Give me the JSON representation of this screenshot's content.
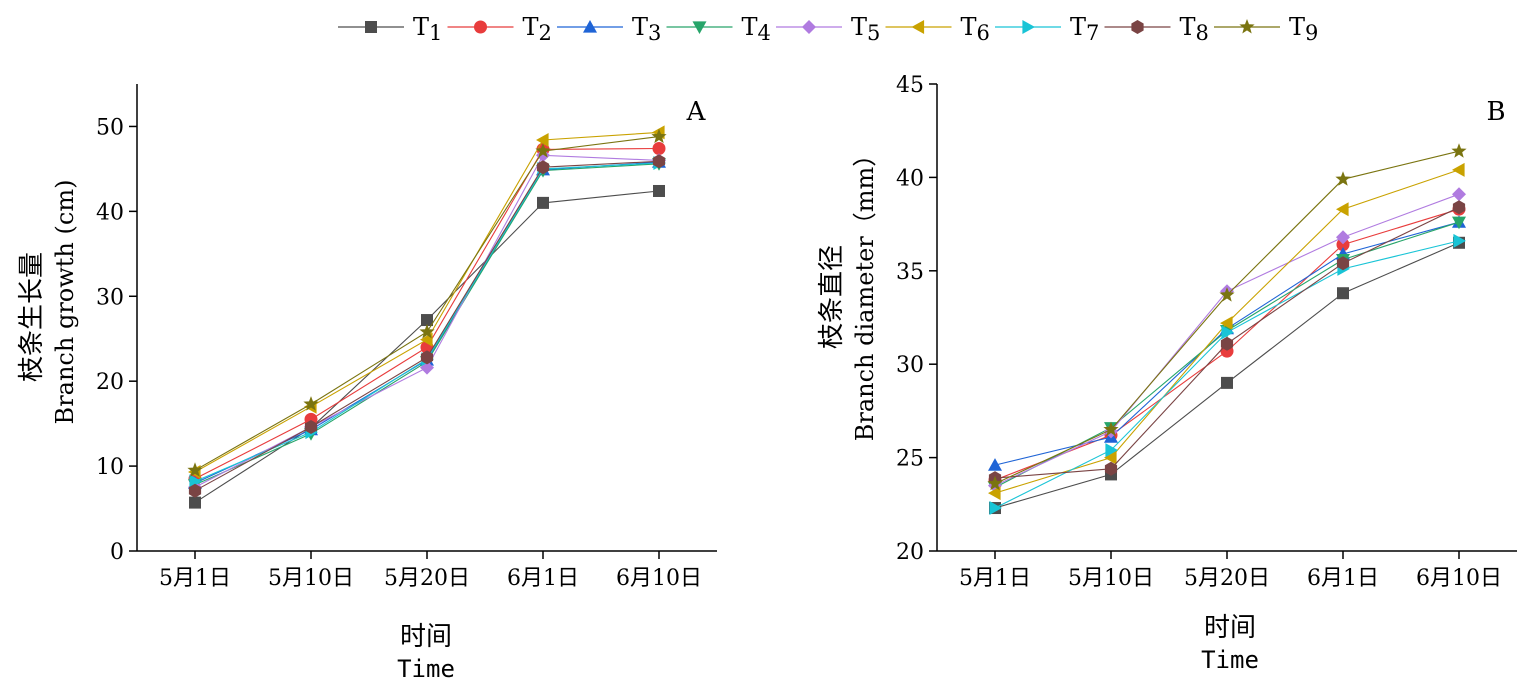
{
  "colors": {
    "T1": "#4d4d4d",
    "T2": "#e83c3c",
    "T3": "#1f64d6",
    "T4": "#27a56a",
    "T5": "#b07be0",
    "T6": "#c9a200",
    "T7": "#19c4d6",
    "T8": "#7a4444",
    "T9": "#7a7410"
  },
  "legend": [
    {
      "label": "T1",
      "marker": "square"
    },
    {
      "label": "T2",
      "marker": "circle"
    },
    {
      "label": "T3",
      "marker": "triangle-up"
    },
    {
      "label": "T4",
      "marker": "triangle-down"
    },
    {
      "label": "T5",
      "marker": "diamond"
    },
    {
      "label": "T6",
      "marker": "triangle-left"
    },
    {
      "label": "T7",
      "marker": "triangle-right"
    },
    {
      "label": "T8",
      "marker": "hexagon"
    },
    {
      "label": "T9",
      "marker": "star"
    }
  ],
  "chart_data": [
    {
      "type": "line",
      "panel": "A",
      "categories": [
        "5月1日",
        "5月10日",
        "5月20日",
        "6月1日",
        "6月10日"
      ],
      "xlabel_cn": "时间",
      "xlabel_en": "Time",
      "ylabel_cn": "枝条生长量",
      "ylabel_en": "Branch growth (cm)",
      "ylim": [
        0,
        55
      ],
      "yticks": [
        0,
        10,
        20,
        30,
        40,
        50
      ],
      "series": [
        {
          "name": "T1",
          "values": [
            5.7,
            14.5,
            27.2,
            41.0,
            42.4
          ]
        },
        {
          "name": "T2",
          "values": [
            8.5,
            15.5,
            24.0,
            47.3,
            47.4
          ]
        },
        {
          "name": "T3",
          "values": [
            8.0,
            14.3,
            22.5,
            44.9,
            45.8
          ]
        },
        {
          "name": "T4",
          "values": [
            7.8,
            13.8,
            22.3,
            44.8,
            45.6
          ]
        },
        {
          "name": "T5",
          "values": [
            7.5,
            14.6,
            21.6,
            46.6,
            46.0
          ]
        },
        {
          "name": "T6",
          "values": [
            9.3,
            17.0,
            24.9,
            48.4,
            49.3
          ]
        },
        {
          "name": "T7",
          "values": [
            8.2,
            14.0,
            22.6,
            45.0,
            45.7
          ]
        },
        {
          "name": "T8",
          "values": [
            7.1,
            14.6,
            22.8,
            45.2,
            45.9
          ]
        },
        {
          "name": "T9",
          "values": [
            9.5,
            17.3,
            25.8,
            47.1,
            48.8
          ]
        }
      ]
    },
    {
      "type": "line",
      "panel": "B",
      "categories": [
        "5月1日",
        "5月10日",
        "5月20日",
        "6月1日",
        "6月10日"
      ],
      "xlabel_cn": "时间",
      "xlabel_en": "Time",
      "ylabel_cn": "枝条直径",
      "ylabel_en": "Branch diameter（mm）",
      "ylim": [
        20,
        45
      ],
      "yticks": [
        20,
        25,
        30,
        35,
        40,
        45
      ],
      "series": [
        {
          "name": "T1",
          "values": [
            22.3,
            24.1,
            29.0,
            33.8,
            36.5
          ]
        },
        {
          "name": "T2",
          "values": [
            23.8,
            26.2,
            30.7,
            36.4,
            38.3
          ]
        },
        {
          "name": "T3",
          "values": [
            24.6,
            26.1,
            31.9,
            35.9,
            37.6
          ]
        },
        {
          "name": "T4",
          "values": [
            23.4,
            26.6,
            31.8,
            35.6,
            37.6
          ]
        },
        {
          "name": "T5",
          "values": [
            23.5,
            26.4,
            33.9,
            36.8,
            39.1
          ]
        },
        {
          "name": "T6",
          "values": [
            23.1,
            25.0,
            32.2,
            38.3,
            40.4
          ]
        },
        {
          "name": "T7",
          "values": [
            22.3,
            25.4,
            31.7,
            35.1,
            36.6
          ]
        },
        {
          "name": "T8",
          "values": [
            23.9,
            24.4,
            31.1,
            35.4,
            38.4
          ]
        },
        {
          "name": "T9",
          "values": [
            23.6,
            26.5,
            33.7,
            39.9,
            41.4
          ]
        }
      ]
    }
  ]
}
